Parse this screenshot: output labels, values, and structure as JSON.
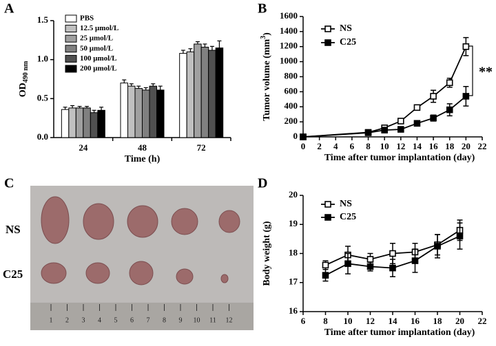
{
  "panel_labels": [
    "A",
    "B",
    "C",
    "D"
  ],
  "chart_data": [
    {
      "type": "bar",
      "x_label": "Time (h)",
      "y_label": "OD",
      "y_label_sub": "490 nm",
      "categories": [
        "24",
        "48",
        "72"
      ],
      "ylim": [
        0,
        1.5
      ],
      "yticks": [
        {
          "value": 0,
          "label": "0.0"
        },
        {
          "value": 0.5,
          "label": "0.5"
        },
        {
          "value": 1,
          "label": "1.0"
        },
        {
          "value": 1.5,
          "label": "1.5"
        }
      ],
      "legend": "upper left",
      "series": [
        {
          "name": "PBS",
          "color": "#ffffff",
          "values": [
            0.36,
            0.7,
            1.08
          ],
          "errors": [
            0.03,
            0.04,
            0.04
          ]
        },
        {
          "name": "12.5 μmol/L",
          "color": "#c0c0c0",
          "values": [
            0.38,
            0.66,
            1.1
          ],
          "errors": [
            0.03,
            0.03,
            0.04
          ]
        },
        {
          "name": "25 μmol/L",
          "color": "#a0a0a0",
          "values": [
            0.38,
            0.63,
            1.2
          ],
          "errors": [
            0.02,
            0.03,
            0.03
          ]
        },
        {
          "name": "50 μmol/L",
          "color": "#808080",
          "values": [
            0.38,
            0.61,
            1.16
          ],
          "errors": [
            0.02,
            0.03,
            0.04
          ]
        },
        {
          "name": "100 μmol/L",
          "color": "#505050",
          "values": [
            0.32,
            0.66,
            1.12
          ],
          "errors": [
            0.03,
            0.03,
            0.05
          ]
        },
        {
          "name": "200 μmol/L",
          "color": "#000000",
          "values": [
            0.35,
            0.61,
            1.15
          ],
          "errors": [
            0.04,
            0.05,
            0.09
          ]
        }
      ]
    },
    {
      "type": "line",
      "x_label": "Time after tumor implantation (day)",
      "y_label": "Tumor volume (mm",
      "y_label_sup": "3",
      "y_label_end": ")",
      "x": [
        0,
        8,
        10,
        12,
        14,
        16,
        18,
        20
      ],
      "xlim": [
        0,
        22
      ],
      "xticks": [
        0,
        2,
        4,
        6,
        8,
        10,
        12,
        14,
        16,
        18,
        20,
        22
      ],
      "ylim": [
        0,
        1600
      ],
      "yticks": [
        0,
        200,
        400,
        600,
        800,
        1000,
        1200,
        1400,
        1600
      ],
      "legend": "upper left",
      "annotation": "**",
      "series": [
        {
          "name": "NS",
          "color": "#000000",
          "marker": "open-square",
          "values": [
            0,
            60,
            120,
            210,
            390,
            540,
            720,
            1200
          ],
          "errors": [
            0,
            10,
            20,
            30,
            30,
            80,
            60,
            120
          ]
        },
        {
          "name": "C25",
          "color": "#000000",
          "marker": "filled-square",
          "values": [
            0,
            55,
            90,
            100,
            180,
            250,
            360,
            540
          ],
          "errors": [
            0,
            10,
            15,
            15,
            20,
            40,
            80,
            130
          ]
        }
      ]
    },
    {
      "type": "line",
      "x_label": "Time after tumor implantation (day)",
      "y_label": "Body weight (g)",
      "x": [
        8,
        10,
        12,
        14,
        16,
        18,
        20
      ],
      "xlim": [
        6,
        22
      ],
      "xticks": [
        6,
        8,
        10,
        12,
        14,
        16,
        18,
        20,
        22
      ],
      "ylim": [
        16,
        20
      ],
      "yticks": [
        16,
        17,
        18,
        19,
        20
      ],
      "legend": "upper left",
      "series": [
        {
          "name": "NS",
          "color": "#000000",
          "marker": "open-square",
          "values": [
            17.6,
            17.95,
            17.8,
            18.0,
            18.05,
            18.3,
            18.8
          ],
          "errors": [
            0.15,
            0.3,
            0.2,
            0.35,
            0.3,
            0.35,
            0.35
          ]
        },
        {
          "name": "C25",
          "color": "#000000",
          "marker": "filled-square",
          "values": [
            17.25,
            17.65,
            17.55,
            17.5,
            17.75,
            18.25,
            18.6
          ],
          "errors": [
            0.2,
            0.35,
            0.15,
            0.3,
            0.4,
            0.4,
            0.45
          ]
        }
      ]
    }
  ],
  "photo": {
    "row_labels": [
      "NS",
      "C25"
    ],
    "ruler_labels": [
      1,
      2,
      3,
      4,
      5,
      6,
      7,
      8,
      9,
      10,
      11,
      12
    ]
  }
}
